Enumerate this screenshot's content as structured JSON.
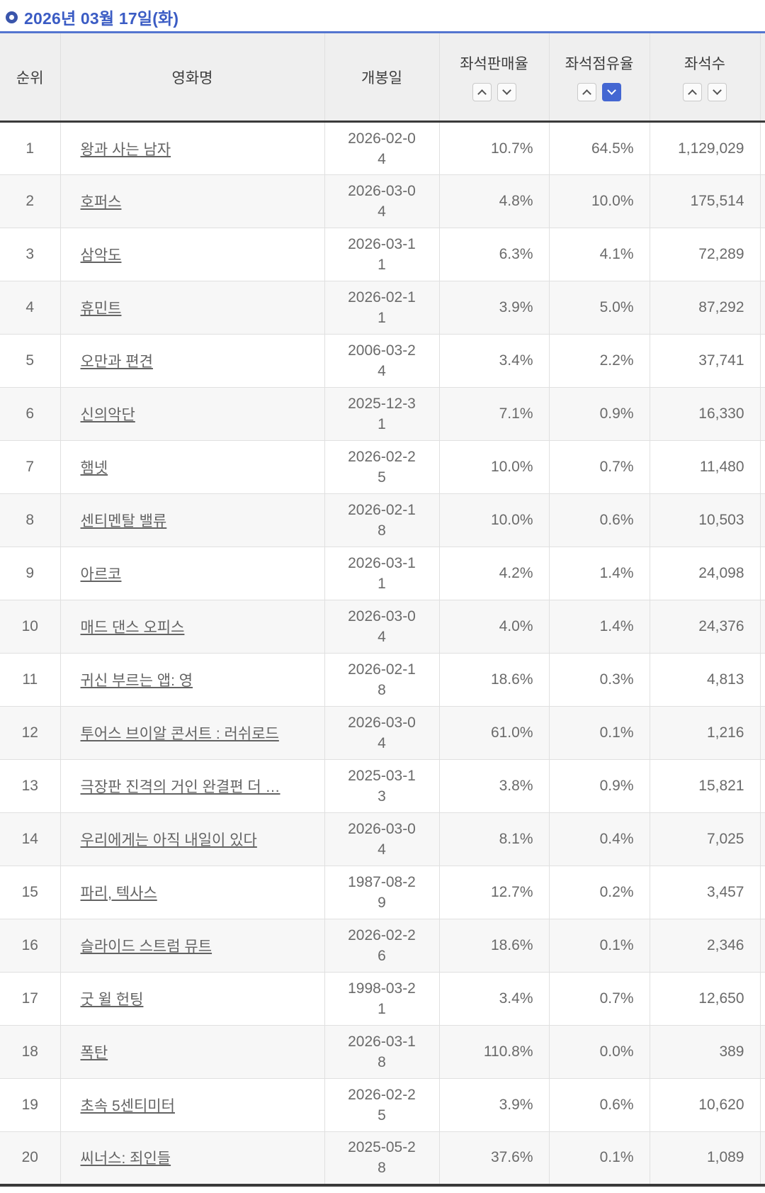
{
  "page_title": "2026년 03월 17일(화)",
  "colors": {
    "accent_blue": "#4467d2",
    "title_blue": "#3b5cc4",
    "topline_blue": "#5475d0"
  },
  "table": {
    "columns": {
      "rank": "순위",
      "title": "영화명",
      "release_date": "개봉일",
      "seat_sales_rate": "좌석판매율",
      "seat_share_rate": "좌석점유율",
      "seat_count": "좌석수"
    },
    "sort": {
      "active_column": "seat_share_rate",
      "active_direction": "desc"
    },
    "rows": [
      {
        "rank": "1",
        "title": "왕과 사는 남자",
        "release_date": "2026-02-04",
        "seat_sales_rate": "10.7%",
        "seat_share_rate": "64.5%",
        "seat_count": "1,129,029"
      },
      {
        "rank": "2",
        "title": "호퍼스",
        "release_date": "2026-03-04",
        "seat_sales_rate": "4.8%",
        "seat_share_rate": "10.0%",
        "seat_count": "175,514"
      },
      {
        "rank": "3",
        "title": "삼악도",
        "release_date": "2026-03-11",
        "seat_sales_rate": "6.3%",
        "seat_share_rate": "4.1%",
        "seat_count": "72,289"
      },
      {
        "rank": "4",
        "title": "휴민트",
        "release_date": "2026-02-11",
        "seat_sales_rate": "3.9%",
        "seat_share_rate": "5.0%",
        "seat_count": "87,292"
      },
      {
        "rank": "5",
        "title": "오만과 편견",
        "release_date": "2006-03-24",
        "seat_sales_rate": "3.4%",
        "seat_share_rate": "2.2%",
        "seat_count": "37,741"
      },
      {
        "rank": "6",
        "title": "신의악단",
        "release_date": "2025-12-31",
        "seat_sales_rate": "7.1%",
        "seat_share_rate": "0.9%",
        "seat_count": "16,330"
      },
      {
        "rank": "7",
        "title": "햄넷",
        "release_date": "2026-02-25",
        "seat_sales_rate": "10.0%",
        "seat_share_rate": "0.7%",
        "seat_count": "11,480"
      },
      {
        "rank": "8",
        "title": "센티멘탈 밸류",
        "release_date": "2026-02-18",
        "seat_sales_rate": "10.0%",
        "seat_share_rate": "0.6%",
        "seat_count": "10,503"
      },
      {
        "rank": "9",
        "title": "아르코",
        "release_date": "2026-03-11",
        "seat_sales_rate": "4.2%",
        "seat_share_rate": "1.4%",
        "seat_count": "24,098"
      },
      {
        "rank": "10",
        "title": "매드 댄스 오피스",
        "release_date": "2026-03-04",
        "seat_sales_rate": "4.0%",
        "seat_share_rate": "1.4%",
        "seat_count": "24,376"
      },
      {
        "rank": "11",
        "title": "귀신 부르는 앱: 영",
        "release_date": "2026-02-18",
        "seat_sales_rate": "18.6%",
        "seat_share_rate": "0.3%",
        "seat_count": "4,813"
      },
      {
        "rank": "12",
        "title": "투어스 브이알 콘서트 : 러쉬로드",
        "release_date": "2026-03-04",
        "seat_sales_rate": "61.0%",
        "seat_share_rate": "0.1%",
        "seat_count": "1,216"
      },
      {
        "rank": "13",
        "title": "극장판 진격의 거인 완결편 더 …",
        "release_date": "2025-03-13",
        "seat_sales_rate": "3.8%",
        "seat_share_rate": "0.9%",
        "seat_count": "15,821"
      },
      {
        "rank": "14",
        "title": "우리에게는 아직 내일이 있다",
        "release_date": "2026-03-04",
        "seat_sales_rate": "8.1%",
        "seat_share_rate": "0.4%",
        "seat_count": "7,025"
      },
      {
        "rank": "15",
        "title": "파리, 텍사스",
        "release_date": "1987-08-29",
        "seat_sales_rate": "12.7%",
        "seat_share_rate": "0.2%",
        "seat_count": "3,457"
      },
      {
        "rank": "16",
        "title": "슬라이드 스트럼 뮤트",
        "release_date": "2026-02-26",
        "seat_sales_rate": "18.6%",
        "seat_share_rate": "0.1%",
        "seat_count": "2,346"
      },
      {
        "rank": "17",
        "title": "굿 윌 헌팅",
        "release_date": "1998-03-21",
        "seat_sales_rate": "3.4%",
        "seat_share_rate": "0.7%",
        "seat_count": "12,650"
      },
      {
        "rank": "18",
        "title": "폭탄",
        "release_date": "2026-03-18",
        "seat_sales_rate": "110.8%",
        "seat_share_rate": "0.0%",
        "seat_count": "389"
      },
      {
        "rank": "19",
        "title": "초속 5센티미터",
        "release_date": "2026-02-25",
        "seat_sales_rate": "3.9%",
        "seat_share_rate": "0.6%",
        "seat_count": "10,620"
      },
      {
        "rank": "20",
        "title": "씨너스: 죄인들",
        "release_date": "2025-05-28",
        "seat_sales_rate": "37.6%",
        "seat_share_rate": "0.1%",
        "seat_count": "1,089"
      }
    ]
  }
}
